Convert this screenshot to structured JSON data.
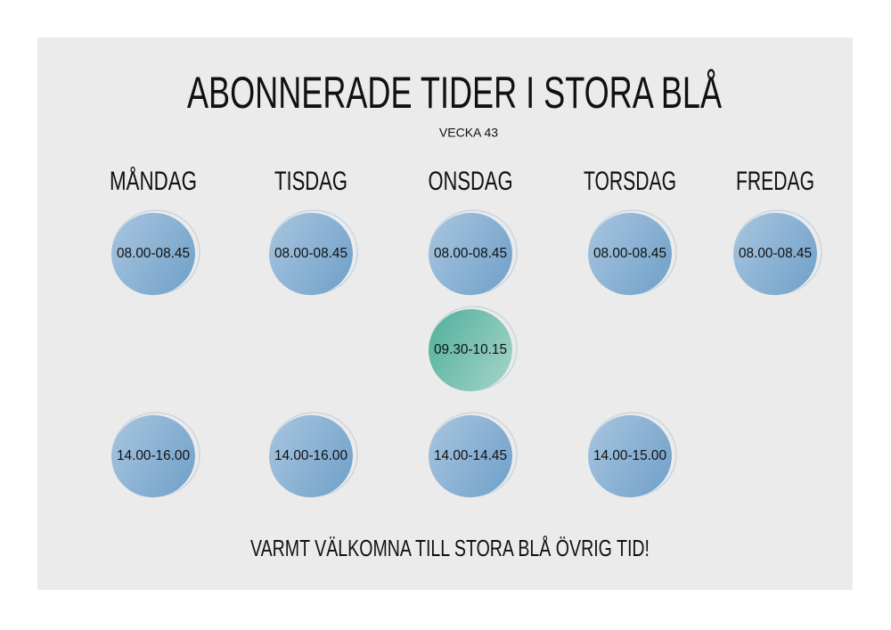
{
  "header": {
    "title": "ABONNERADE TIDER I STORA BLÅ",
    "subtitle": "VECKA 43"
  },
  "days": [
    {
      "name": "MÅNDAG",
      "slots": [
        "08.00-08.45",
        null,
        "14.00-16.00"
      ]
    },
    {
      "name": "TISDAG",
      "slots": [
        "08.00-08.45",
        null,
        "14.00-16.00"
      ]
    },
    {
      "name": "ONSDAG",
      "slots": [
        "08.00-08.45",
        "09.30-10.15",
        "14.00-14.45"
      ]
    },
    {
      "name": "TORSDAG",
      "slots": [
        "08.00-08.45",
        null,
        "14.00-15.00"
      ]
    },
    {
      "name": "FREDAG",
      "slots": [
        "08.00-08.45",
        null,
        null
      ]
    }
  ],
  "footer": "VARMT VÄLKOMNA TILL STORA BLÅ ÖVRIG TID!"
}
